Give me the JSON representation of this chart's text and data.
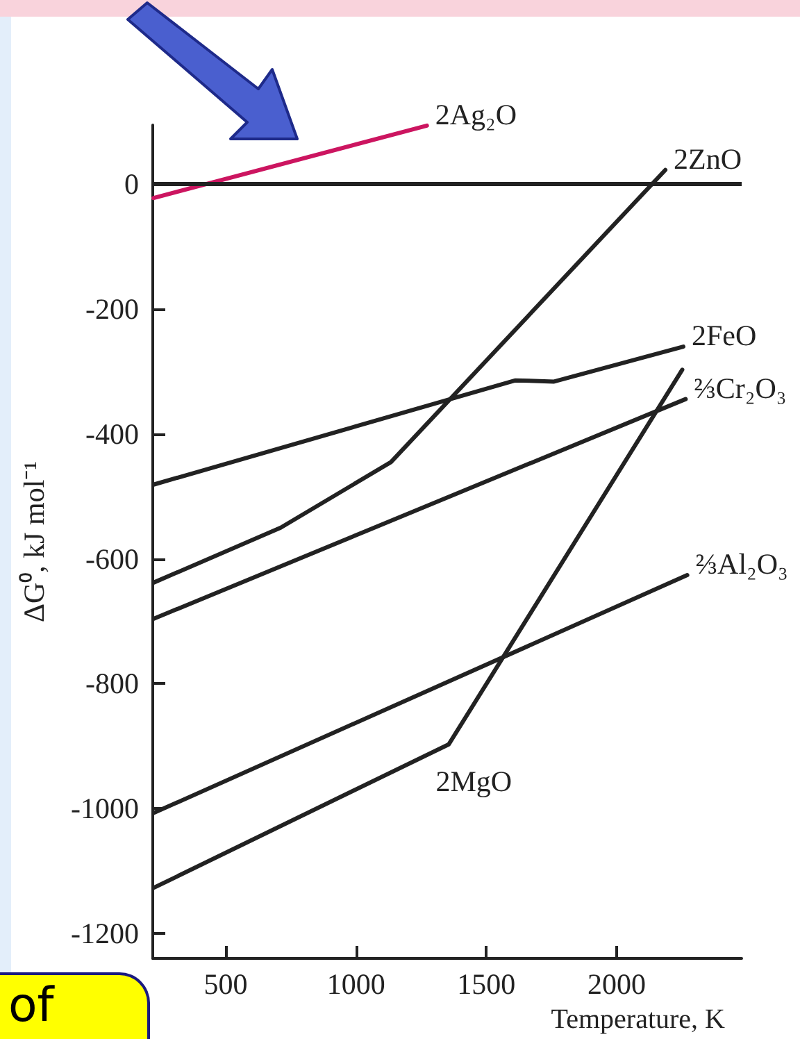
{
  "chart_data": {
    "type": "line",
    "xlabel": "Temperature, K",
    "ylabel": "ΔG⁰, kJ mol⁻¹",
    "xlim": [
      220,
      2480
    ],
    "xticks": [
      500,
      1000,
      1500,
      2000
    ],
    "ylim": [
      -1240,
      95
    ],
    "yticks": [
      0,
      -200,
      -400,
      -600,
      -800,
      -1000,
      -1200
    ],
    "grid": false,
    "marker": "none",
    "line_style": "solid",
    "ref_lines": [
      {
        "axis": "y",
        "value": 0,
        "color": "#222222"
      }
    ],
    "series": [
      {
        "color": "#cc1560",
        "x": [
          223,
          1272
        ],
        "values": [
          -22,
          94
        ]
      },
      {
        "color": "#222222",
        "x": [
          223,
          711,
          1134,
          2187
        ],
        "values": [
          -638,
          -550,
          -445,
          23
        ]
      },
      {
        "color": "#222222",
        "x": [
          223,
          1612,
          1760,
          2256
        ],
        "values": [
          -481,
          -314,
          -316,
          -260
        ]
      },
      {
        "color": "#222222",
        "x": [
          223,
          2265
        ],
        "values": [
          -696,
          -344
        ]
      },
      {
        "color": "#222222",
        "x": [
          223,
          1356,
          2252
        ],
        "values": [
          -1127,
          -897,
          -297
        ]
      },
      {
        "color": "#222222",
        "x": [
          223,
          2271
        ],
        "values": [
          -1007,
          -626
        ]
      }
    ],
    "annotations": [
      {
        "text": "2Ag₂O",
        "x": 1272,
        "y": 94
      },
      {
        "text": "2ZnO",
        "x": 2187,
        "y": 23
      },
      {
        "text": "2FeO",
        "x": 2256,
        "y": -260
      },
      {
        "text": "⅔Cr₂O₃",
        "x": 2265,
        "y": -344
      },
      {
        "text": "⅔Al₂O₃",
        "x": 2271,
        "y": -626
      },
      {
        "text": "2MgO",
        "x": 1356,
        "y": -897
      },
      "of"
    ]
  }
}
